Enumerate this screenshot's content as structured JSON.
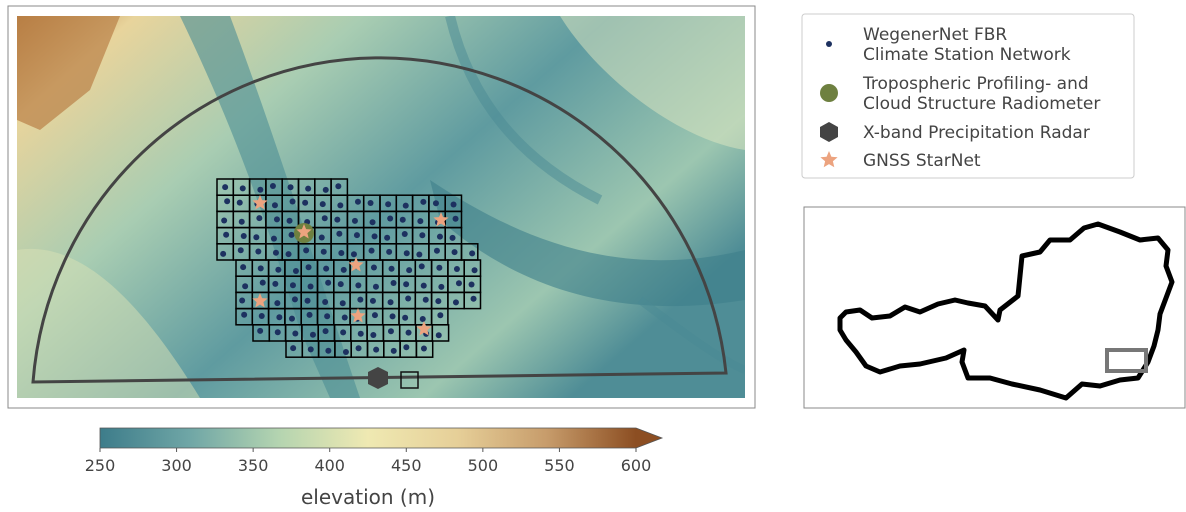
{
  "legend": {
    "items": [
      {
        "lines": [
          "WegenerNet FBR",
          "Climate Station Network"
        ]
      },
      {
        "lines": [
          "Tropospheric Profiling- and",
          "Cloud Structure Radiometer"
        ]
      },
      {
        "lines": [
          "X-band Precipitation Radar"
        ]
      },
      {
        "lines": [
          "GNSS StarNet"
        ]
      }
    ]
  },
  "colorbar": {
    "label": "elevation (m)",
    "lim": [
      250,
      600
    ],
    "ticks": [
      250,
      300,
      350,
      400,
      450,
      500,
      550,
      600
    ],
    "colors": [
      "#3d7c8a",
      "#6fa6a6",
      "#b4d4b0",
      "#efe9b2",
      "#e6cf98",
      "#c79c6b",
      "#8c4e22"
    ]
  }
}
